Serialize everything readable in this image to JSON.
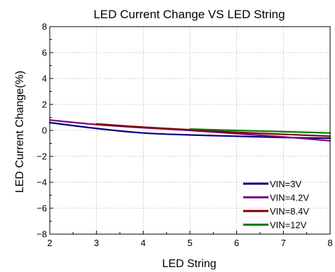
{
  "chart_data": {
    "type": "line",
    "title": "LED Current Change VS LED String",
    "xlabel": "LED String",
    "ylabel": "LED Current Change(%)",
    "xlim": [
      2,
      8
    ],
    "ylim": [
      -8,
      8
    ],
    "xticks": [
      2,
      3,
      4,
      5,
      6,
      7,
      8
    ],
    "yticks": [
      -8,
      -6,
      -4,
      -2,
      0,
      2,
      4,
      6,
      8
    ],
    "xtick_labels": [
      "2",
      "3",
      "4",
      "5",
      "6",
      "7",
      "8"
    ],
    "ytick_labels": [
      "−8",
      "−6",
      "−4",
      "−2",
      "0",
      "2",
      "4",
      "6",
      "8"
    ],
    "grid": true,
    "legend_position": "bottom-right",
    "series": [
      {
        "name": "VIN=3V",
        "color": "#00007f",
        "x": [
          2,
          3,
          4,
          5,
          6,
          7,
          8
        ],
        "y": [
          0.6,
          0.15,
          -0.2,
          -0.35,
          -0.45,
          -0.55,
          -0.6
        ]
      },
      {
        "name": "VIN=4.2V",
        "color": "#7f007f",
        "x": [
          2,
          3,
          4,
          5,
          6,
          7,
          8
        ],
        "y": [
          0.8,
          0.45,
          0.2,
          0.0,
          -0.25,
          -0.5,
          -0.8
        ]
      },
      {
        "name": "VIN=8.4V",
        "color": "#7f0000",
        "x": [
          3,
          4,
          5,
          6,
          7,
          8
        ],
        "y": [
          0.5,
          0.25,
          0.05,
          -0.15,
          -0.3,
          -0.45
        ]
      },
      {
        "name": "VIN=12V",
        "color": "#007f00",
        "x": [
          5,
          6,
          7,
          8
        ],
        "y": [
          0.1,
          0.0,
          -0.1,
          -0.2
        ]
      }
    ]
  }
}
